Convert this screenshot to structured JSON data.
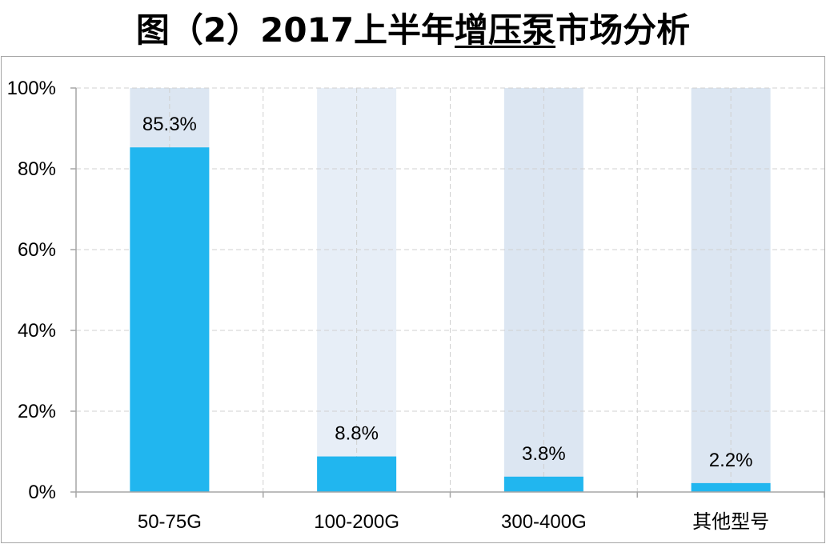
{
  "chart_data": {
    "type": "bar",
    "title": {
      "before": "图（2）2017上半年",
      "underlined": "增压泵",
      "after": "市场分析"
    },
    "categories": [
      "50-75G",
      "100-200G",
      "300-400G",
      "其他型号"
    ],
    "series": [
      {
        "values": [
          85.3,
          8.8,
          3.8,
          2.2
        ]
      }
    ],
    "data_labels": [
      "85.3%",
      "8.8%",
      "3.8%",
      "2.2%"
    ],
    "background_value": 100,
    "ylim": [
      0,
      100
    ],
    "y_tick_values": [
      0,
      20,
      40,
      60,
      80,
      100
    ],
    "y_tick_labels": [
      "0%",
      "20%",
      "40%",
      "60%",
      "80%",
      "100%"
    ],
    "grid": true,
    "legend": "none",
    "colors": {
      "bar": "#21B6EF",
      "background_bars": [
        "#DCE6F2",
        "#E7EEF7",
        "#DCE6F2",
        "#DCE6F2"
      ],
      "grid": "#D0D0D0",
      "axis": "#A6A6A6",
      "text": "#000000"
    }
  }
}
